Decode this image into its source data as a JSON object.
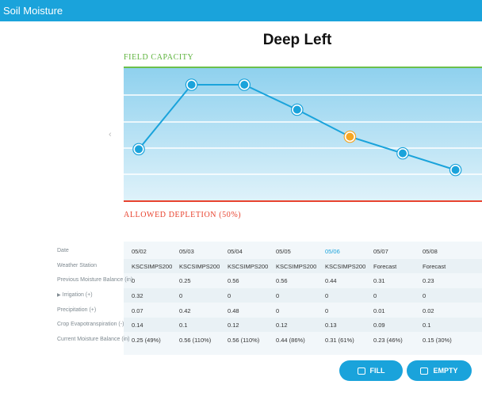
{
  "header": {
    "title": "Soil Moisture"
  },
  "chart_data": {
    "type": "line",
    "title": "Deep Left",
    "x": [
      "05/02",
      "05/03",
      "05/04",
      "05/05",
      "05/06",
      "05/07",
      "05/08"
    ],
    "series": [
      {
        "values": [
          0.25,
          0.56,
          0.56,
          0.44,
          0.31,
          0.23,
          0.15
        ]
      }
    ],
    "highlight_index": 4,
    "field_capacity_label": "FIELD CAPACITY",
    "allowed_depletion_label": "ALLOWED DEPLETION (50%)",
    "colors": {
      "line": "#1aa3db",
      "highlight": "#f5a623",
      "field_capacity": "#6cc04a",
      "allowed_depletion": "#e8432f"
    }
  },
  "nav": {
    "prev_icon": "‹"
  },
  "table": {
    "row_labels": [
      "Date",
      "Weather Station",
      "Previous Moisture Balance (in)",
      "Irrigation (+)",
      "Precipitation (+)",
      "Crop Evapotranspiration (-)",
      "Current Moisture Balance (in)"
    ],
    "columns": [
      {
        "date": "05/02",
        "station": "KSCSIMPS200",
        "prev": "0",
        "irrigation": "0.32",
        "precip": "0.07",
        "et": "0.14",
        "current": "0.25 (49%)"
      },
      {
        "date": "05/03",
        "station": "KSCSIMPS200",
        "prev": "0.25",
        "irrigation": "0",
        "precip": "0.42",
        "et": "0.1",
        "current": "0.56 (110%)"
      },
      {
        "date": "05/04",
        "station": "KSCSIMPS200",
        "prev": "0.56",
        "irrigation": "0",
        "precip": "0.48",
        "et": "0.12",
        "current": "0.56 (110%)"
      },
      {
        "date": "05/05",
        "station": "KSCSIMPS200",
        "prev": "0.56",
        "irrigation": "0",
        "precip": "0",
        "et": "0.12",
        "current": "0.44 (86%)"
      },
      {
        "date": "05/06",
        "station": "KSCSIMPS200",
        "prev": "0.44",
        "irrigation": "0",
        "precip": "0",
        "et": "0.13",
        "current": "0.31 (61%)"
      },
      {
        "date": "05/07",
        "station": "Forecast",
        "prev": "0.31",
        "irrigation": "0",
        "precip": "0.01",
        "et": "0.09",
        "current": "0.23 (46%)"
      },
      {
        "date": "05/08",
        "station": "Forecast",
        "prev": "0.23",
        "irrigation": "0",
        "precip": "0.02",
        "et": "0.1",
        "current": "0.15 (30%)"
      }
    ],
    "circled_precip": [
      "05/03",
      "05/04"
    ]
  },
  "buttons": {
    "fill": "FILL",
    "empty": "EMPTY",
    "fill_icon": "calendar-icon",
    "empty_icon": "chat-icon"
  }
}
